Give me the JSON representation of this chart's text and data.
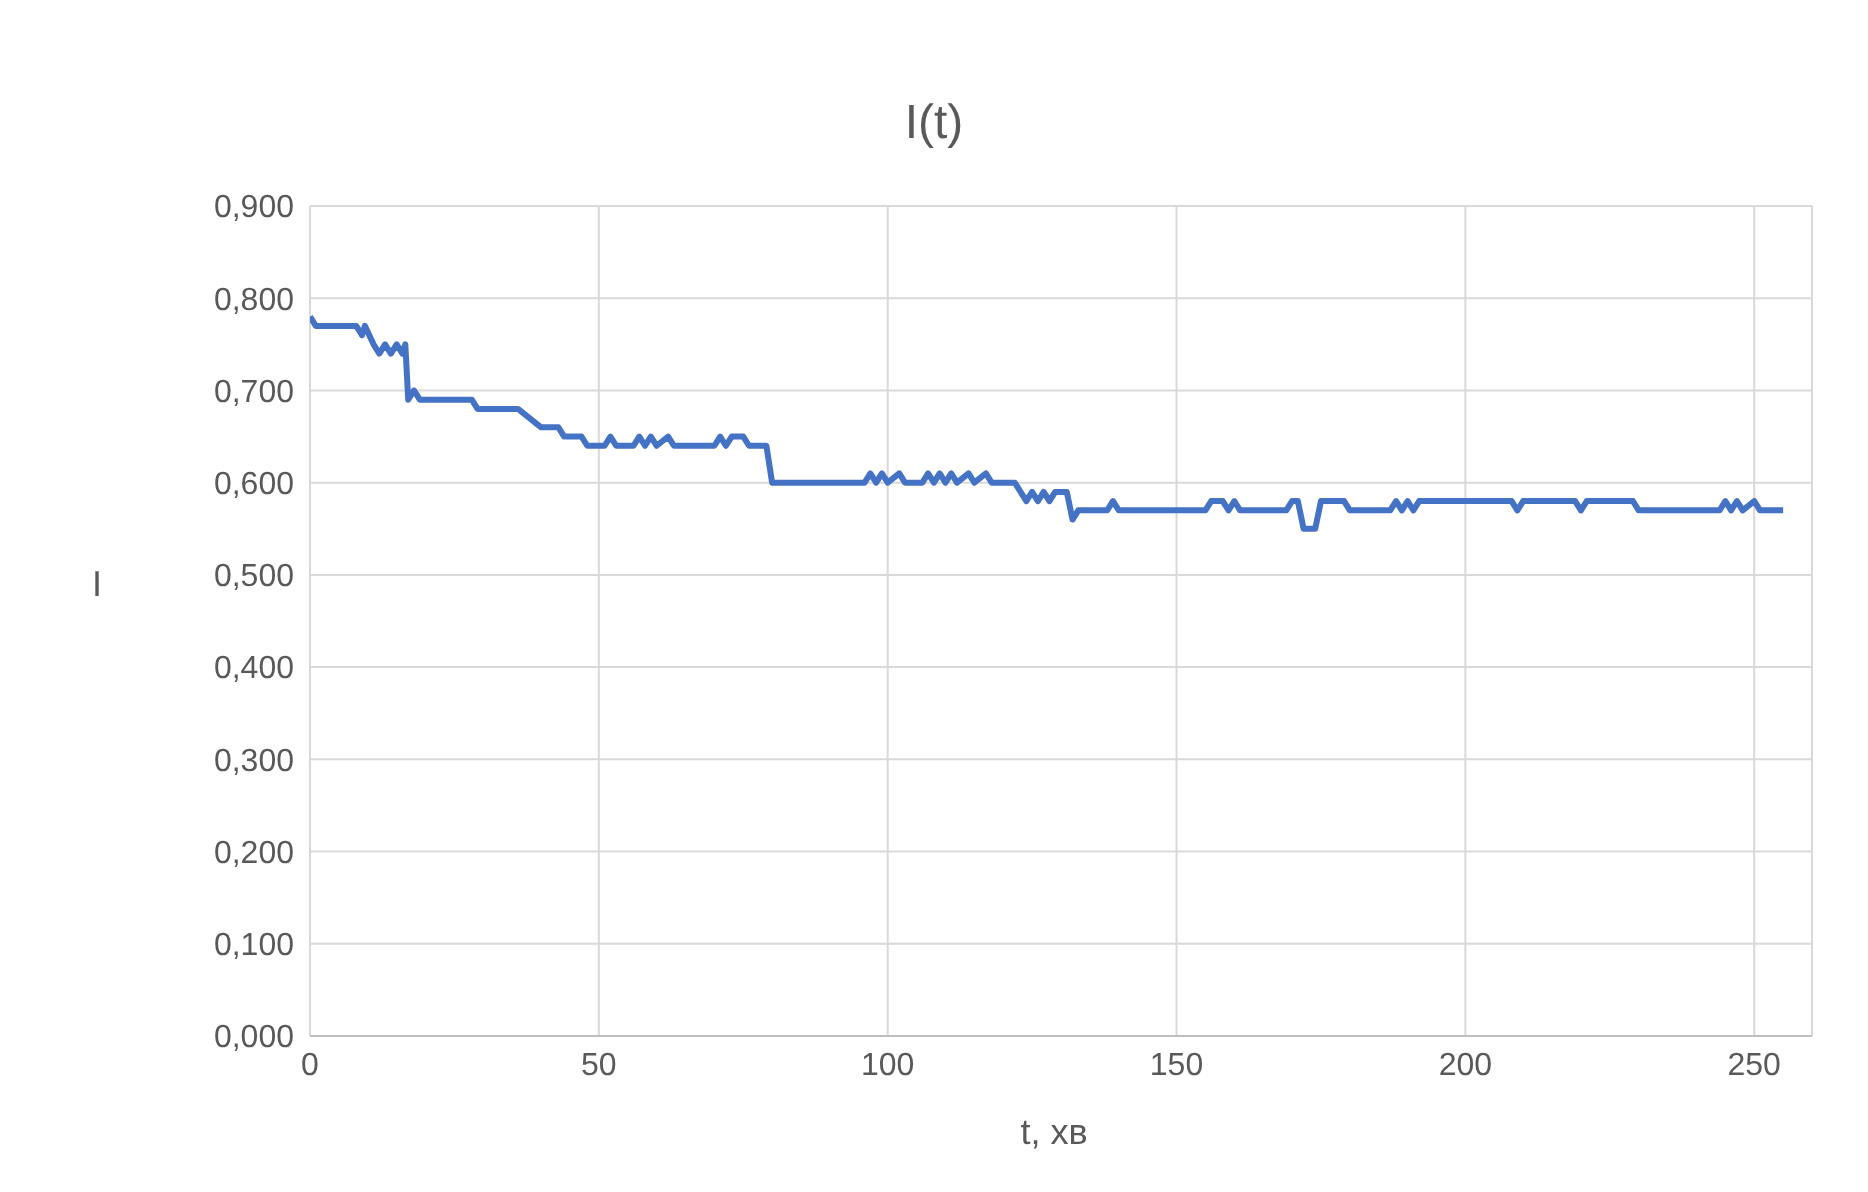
{
  "chart_data": {
    "type": "line",
    "title": "I(t)",
    "xlabel": "t, хв",
    "ylabel": "I",
    "grid": true,
    "legend": false,
    "marker": "none",
    "line_style": "solid",
    "xlim": [
      0,
      260
    ],
    "xticks": [
      0,
      50,
      100,
      150,
      200,
      250
    ],
    "ylim": [
      0,
      0.9
    ],
    "yticks": [
      {
        "value": 0,
        "label": "0,000"
      },
      {
        "value": 0.1,
        "label": "0,100"
      },
      {
        "value": 0.2,
        "label": "0,200"
      },
      {
        "value": 0.3,
        "label": "0,300"
      },
      {
        "value": 0.4,
        "label": "0,400"
      },
      {
        "value": 0.5,
        "label": "0,500"
      },
      {
        "value": 0.6,
        "label": "0,600"
      },
      {
        "value": 0.7,
        "label": "0,700"
      },
      {
        "value": 0.8,
        "label": "0,800"
      },
      {
        "value": 0.9,
        "label": "0,900"
      }
    ],
    "x": [
      0,
      1,
      8,
      9,
      9.5,
      11,
      12,
      13,
      14,
      15,
      16,
      16.5,
      17,
      18,
      19,
      28,
      29,
      36,
      38,
      40,
      43,
      44,
      47,
      48,
      51,
      52,
      53,
      56,
      57,
      58,
      59,
      60,
      62,
      63,
      70,
      71,
      72,
      73,
      75,
      76,
      79,
      80,
      96,
      97,
      98,
      99,
      100,
      102,
      103,
      106,
      107,
      108,
      109,
      110,
      111,
      112,
      114,
      115,
      117,
      118,
      122,
      124,
      125,
      126,
      127,
      128,
      129,
      131,
      132,
      133,
      138,
      139,
      140,
      155,
      156,
      158,
      159,
      160,
      161,
      169,
      170,
      171,
      172,
      174,
      175,
      179,
      180,
      187,
      188,
      189,
      190,
      191,
      192,
      208,
      209,
      210,
      219,
      220,
      221,
      229,
      230,
      244,
      245,
      246,
      247,
      248,
      250,
      251,
      255
    ],
    "series": [
      {
        "color": "#4472c4",
        "values": [
          0.78,
          0.77,
          0.77,
          0.76,
          0.77,
          0.75,
          0.74,
          0.75,
          0.74,
          0.75,
          0.74,
          0.75,
          0.69,
          0.7,
          0.69,
          0.69,
          0.68,
          0.68,
          0.67,
          0.66,
          0.66,
          0.65,
          0.65,
          0.64,
          0.64,
          0.65,
          0.64,
          0.64,
          0.65,
          0.64,
          0.65,
          0.64,
          0.65,
          0.64,
          0.64,
          0.65,
          0.64,
          0.65,
          0.65,
          0.64,
          0.64,
          0.6,
          0.6,
          0.61,
          0.6,
          0.61,
          0.6,
          0.61,
          0.6,
          0.6,
          0.61,
          0.6,
          0.61,
          0.6,
          0.61,
          0.6,
          0.61,
          0.6,
          0.61,
          0.6,
          0.6,
          0.58,
          0.59,
          0.58,
          0.59,
          0.58,
          0.59,
          0.59,
          0.56,
          0.57,
          0.57,
          0.58,
          0.57,
          0.57,
          0.58,
          0.58,
          0.57,
          0.58,
          0.57,
          0.57,
          0.58,
          0.58,
          0.55,
          0.55,
          0.58,
          0.58,
          0.57,
          0.57,
          0.58,
          0.57,
          0.58,
          0.57,
          0.58,
          0.58,
          0.57,
          0.58,
          0.58,
          0.57,
          0.58,
          0.58,
          0.57,
          0.57,
          0.58,
          0.57,
          0.58,
          0.57,
          0.58,
          0.57,
          0.57
        ]
      }
    ]
  }
}
